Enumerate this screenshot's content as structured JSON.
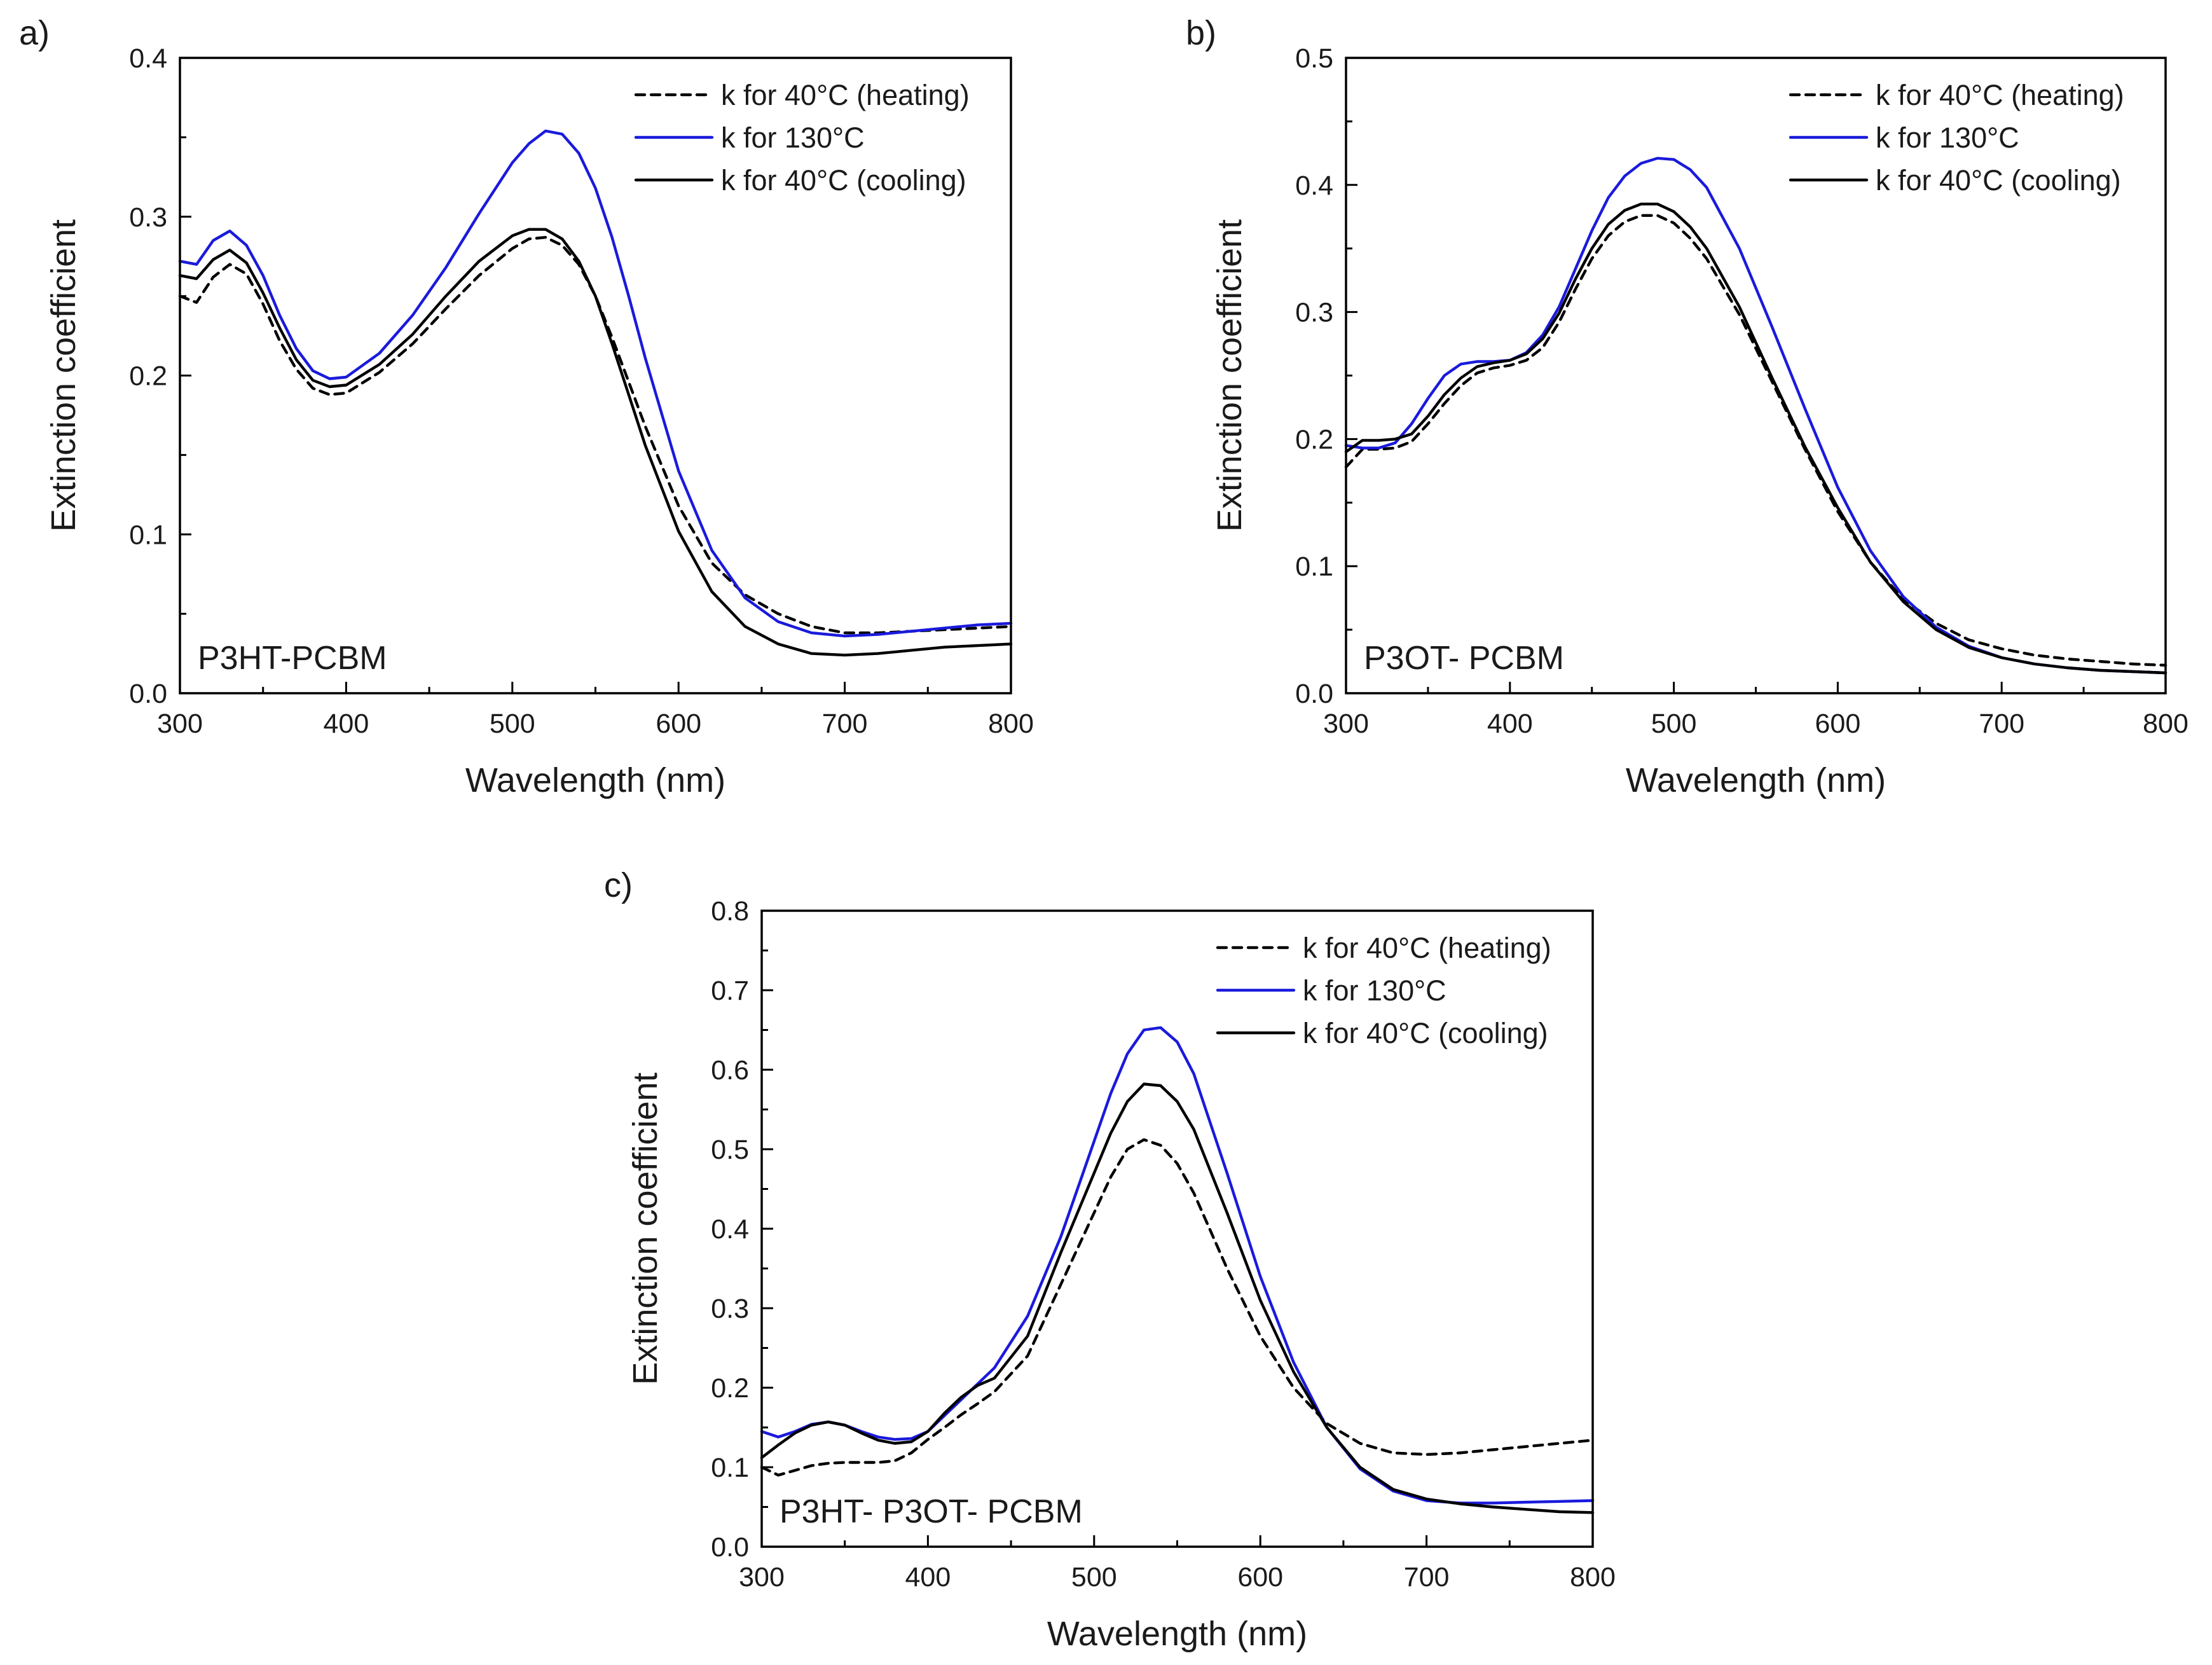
{
  "colors": {
    "heating": "#000000",
    "hot": "#1a1adc",
    "cooling": "#000000",
    "axis": "#000000",
    "background": "#ffffff"
  },
  "chart_data": [
    {
      "type": "line",
      "panel": "a)",
      "sample_label": "P3HT-PCBM",
      "xlabel": "Wavelength (nm)",
      "ylabel": "Extinction coefficient",
      "xlim": [
        300,
        800
      ],
      "ylim": [
        0.0,
        0.4
      ],
      "xticks": [
        "300",
        "400",
        "500",
        "600",
        "700",
        "800"
      ],
      "yticks": [
        "0.0",
        "0.1",
        "0.2",
        "0.3",
        "0.4"
      ],
      "legend_position": "top-right",
      "x": [
        300,
        310,
        320,
        330,
        340,
        350,
        360,
        370,
        380,
        390,
        400,
        420,
        440,
        460,
        480,
        500,
        510,
        520,
        530,
        540,
        550,
        560,
        570,
        580,
        600,
        620,
        640,
        660,
        680,
        700,
        720,
        740,
        760,
        780,
        800
      ],
      "series": [
        {
          "name": "k for 40°C (heating)",
          "style": "dashed",
          "color_key": "heating",
          "values": [
            0.25,
            0.246,
            0.262,
            0.27,
            0.264,
            0.245,
            0.222,
            0.204,
            0.192,
            0.188,
            0.189,
            0.202,
            0.22,
            0.242,
            0.263,
            0.28,
            0.286,
            0.287,
            0.282,
            0.27,
            0.25,
            0.224,
            0.196,
            0.168,
            0.118,
            0.082,
            0.062,
            0.05,
            0.042,
            0.038,
            0.038,
            0.039,
            0.04,
            0.041,
            0.042
          ]
        },
        {
          "name": "k for 130°C",
          "style": "solid",
          "color_key": "hot",
          "values": [
            0.272,
            0.27,
            0.285,
            0.291,
            0.282,
            0.263,
            0.238,
            0.217,
            0.203,
            0.198,
            0.199,
            0.214,
            0.238,
            0.268,
            0.302,
            0.334,
            0.346,
            0.354,
            0.352,
            0.34,
            0.318,
            0.287,
            0.25,
            0.211,
            0.14,
            0.09,
            0.06,
            0.045,
            0.038,
            0.036,
            0.037,
            0.039,
            0.041,
            0.043,
            0.044
          ]
        },
        {
          "name": "k for 40°C (cooling)",
          "style": "solid",
          "color_key": "cooling",
          "values": [
            0.263,
            0.261,
            0.273,
            0.279,
            0.271,
            0.252,
            0.23,
            0.21,
            0.197,
            0.193,
            0.194,
            0.207,
            0.226,
            0.25,
            0.272,
            0.288,
            0.292,
            0.292,
            0.286,
            0.272,
            0.25,
            0.22,
            0.188,
            0.156,
            0.102,
            0.064,
            0.042,
            0.031,
            0.025,
            0.024,
            0.025,
            0.027,
            0.029,
            0.03,
            0.031
          ]
        }
      ]
    },
    {
      "type": "line",
      "panel": "b)",
      "sample_label": "P3OT- PCBM",
      "xlabel": "Wavelength (nm)",
      "ylabel": "Extinction coefficient",
      "xlim": [
        300,
        800
      ],
      "ylim": [
        0.0,
        0.5
      ],
      "xticks": [
        "300",
        "400",
        "500",
        "600",
        "700",
        "800"
      ],
      "yticks": [
        "0.0",
        "0.1",
        "0.2",
        "0.3",
        "0.4",
        "0.5"
      ],
      "legend_position": "top-right",
      "x": [
        300,
        310,
        320,
        330,
        340,
        350,
        360,
        370,
        380,
        390,
        400,
        410,
        420,
        430,
        440,
        450,
        460,
        470,
        480,
        490,
        500,
        510,
        520,
        540,
        560,
        580,
        600,
        620,
        640,
        660,
        680,
        700,
        720,
        740,
        760,
        780,
        800
      ],
      "series": [
        {
          "name": "k for 40°C (heating)",
          "style": "dashed",
          "color_key": "heating",
          "values": [
            0.178,
            0.192,
            0.192,
            0.193,
            0.198,
            0.212,
            0.228,
            0.242,
            0.252,
            0.256,
            0.258,
            0.262,
            0.272,
            0.292,
            0.318,
            0.342,
            0.36,
            0.371,
            0.376,
            0.376,
            0.37,
            0.358,
            0.342,
            0.298,
            0.245,
            0.192,
            0.143,
            0.103,
            0.074,
            0.055,
            0.042,
            0.035,
            0.03,
            0.027,
            0.025,
            0.023,
            0.022
          ]
        },
        {
          "name": "k for 130°C",
          "style": "solid",
          "color_key": "hot",
          "values": [
            0.195,
            0.193,
            0.193,
            0.197,
            0.212,
            0.232,
            0.25,
            0.259,
            0.261,
            0.261,
            0.262,
            0.268,
            0.282,
            0.304,
            0.334,
            0.364,
            0.39,
            0.407,
            0.417,
            0.421,
            0.42,
            0.412,
            0.398,
            0.35,
            0.288,
            0.224,
            0.162,
            0.112,
            0.076,
            0.052,
            0.037,
            0.028,
            0.023,
            0.02,
            0.018,
            0.017,
            0.016
          ]
        },
        {
          "name": "k for 40°C (cooling)",
          "style": "solid",
          "color_key": "cooling",
          "values": [
            0.19,
            0.199,
            0.199,
            0.2,
            0.204,
            0.218,
            0.235,
            0.248,
            0.257,
            0.26,
            0.262,
            0.267,
            0.279,
            0.299,
            0.326,
            0.35,
            0.369,
            0.38,
            0.385,
            0.385,
            0.379,
            0.367,
            0.35,
            0.304,
            0.248,
            0.194,
            0.146,
            0.103,
            0.072,
            0.05,
            0.036,
            0.028,
            0.023,
            0.02,
            0.018,
            0.017,
            0.016
          ]
        }
      ]
    },
    {
      "type": "line",
      "panel": "c)",
      "sample_label": "P3HT- P3OT- PCBM",
      "xlabel": "Wavelength (nm)",
      "ylabel": "Extinction coefficient",
      "xlim": [
        300,
        800
      ],
      "ylim": [
        0.0,
        0.8
      ],
      "xticks": [
        "300",
        "400",
        "500",
        "600",
        "700",
        "800"
      ],
      "yticks": [
        "0.0",
        "0.1",
        "0.2",
        "0.3",
        "0.4",
        "0.5",
        "0.6",
        "0.7",
        "0.8"
      ],
      "legend_position": "top-right",
      "x": [
        300,
        310,
        320,
        330,
        340,
        350,
        360,
        370,
        380,
        390,
        400,
        410,
        420,
        430,
        440,
        460,
        480,
        500,
        510,
        520,
        530,
        540,
        550,
        560,
        580,
        600,
        620,
        640,
        660,
        680,
        700,
        720,
        740,
        760,
        780,
        800
      ],
      "series": [
        {
          "name": "k for 40°C (heating)",
          "style": "dashed",
          "color_key": "heating",
          "values": [
            0.1,
            0.09,
            0.096,
            0.102,
            0.105,
            0.106,
            0.106,
            0.106,
            0.108,
            0.118,
            0.135,
            0.15,
            0.166,
            0.18,
            0.195,
            0.24,
            0.33,
            0.42,
            0.465,
            0.5,
            0.512,
            0.505,
            0.482,
            0.445,
            0.35,
            0.265,
            0.2,
            0.155,
            0.13,
            0.118,
            0.116,
            0.118,
            0.122,
            0.126,
            0.13,
            0.134
          ]
        },
        {
          "name": "k for 130°C",
          "style": "solid",
          "color_key": "hot",
          "values": [
            0.145,
            0.138,
            0.145,
            0.154,
            0.157,
            0.153,
            0.145,
            0.138,
            0.135,
            0.136,
            0.145,
            0.165,
            0.185,
            0.205,
            0.225,
            0.29,
            0.39,
            0.51,
            0.57,
            0.62,
            0.65,
            0.653,
            0.635,
            0.595,
            0.47,
            0.34,
            0.232,
            0.15,
            0.098,
            0.07,
            0.058,
            0.055,
            0.055,
            0.056,
            0.057,
            0.058
          ]
        },
        {
          "name": "k for 40°C (cooling)",
          "style": "solid",
          "color_key": "cooling",
          "values": [
            0.112,
            0.128,
            0.143,
            0.153,
            0.157,
            0.153,
            0.143,
            0.134,
            0.13,
            0.132,
            0.145,
            0.168,
            0.188,
            0.203,
            0.212,
            0.265,
            0.37,
            0.47,
            0.52,
            0.56,
            0.582,
            0.58,
            0.56,
            0.525,
            0.42,
            0.31,
            0.22,
            0.15,
            0.1,
            0.072,
            0.06,
            0.054,
            0.05,
            0.047,
            0.044,
            0.043
          ]
        }
      ]
    }
  ]
}
